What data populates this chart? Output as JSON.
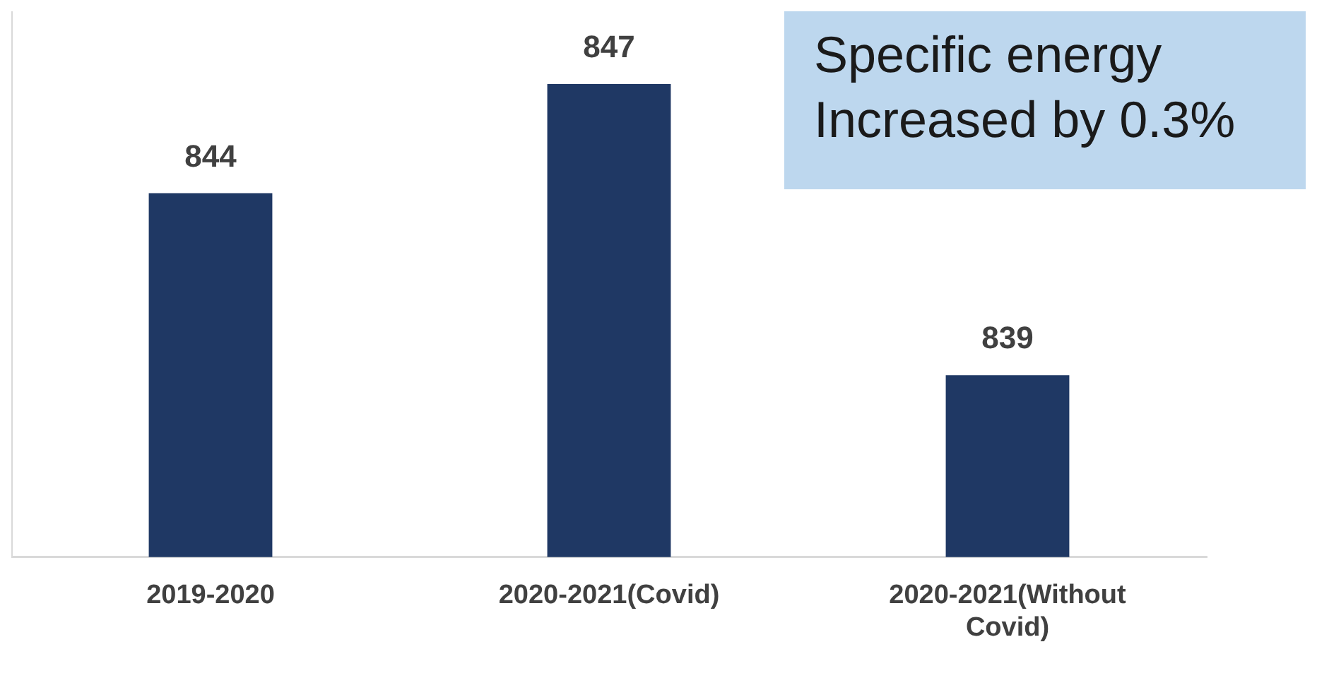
{
  "chart_data": {
    "type": "bar",
    "categories": [
      "2019-2020",
      "2020-2021(Covid)",
      "2020-2021(Without Covid)"
    ],
    "values": [
      844,
      847,
      839
    ],
    "color": "#1f3864",
    "ylim": [
      834,
      849
    ],
    "data_labels": true,
    "tick_labels": "x",
    "grid": false,
    "legend": false,
    "annotations": [
      "Specific energy Increased by 0.3%"
    ]
  }
}
